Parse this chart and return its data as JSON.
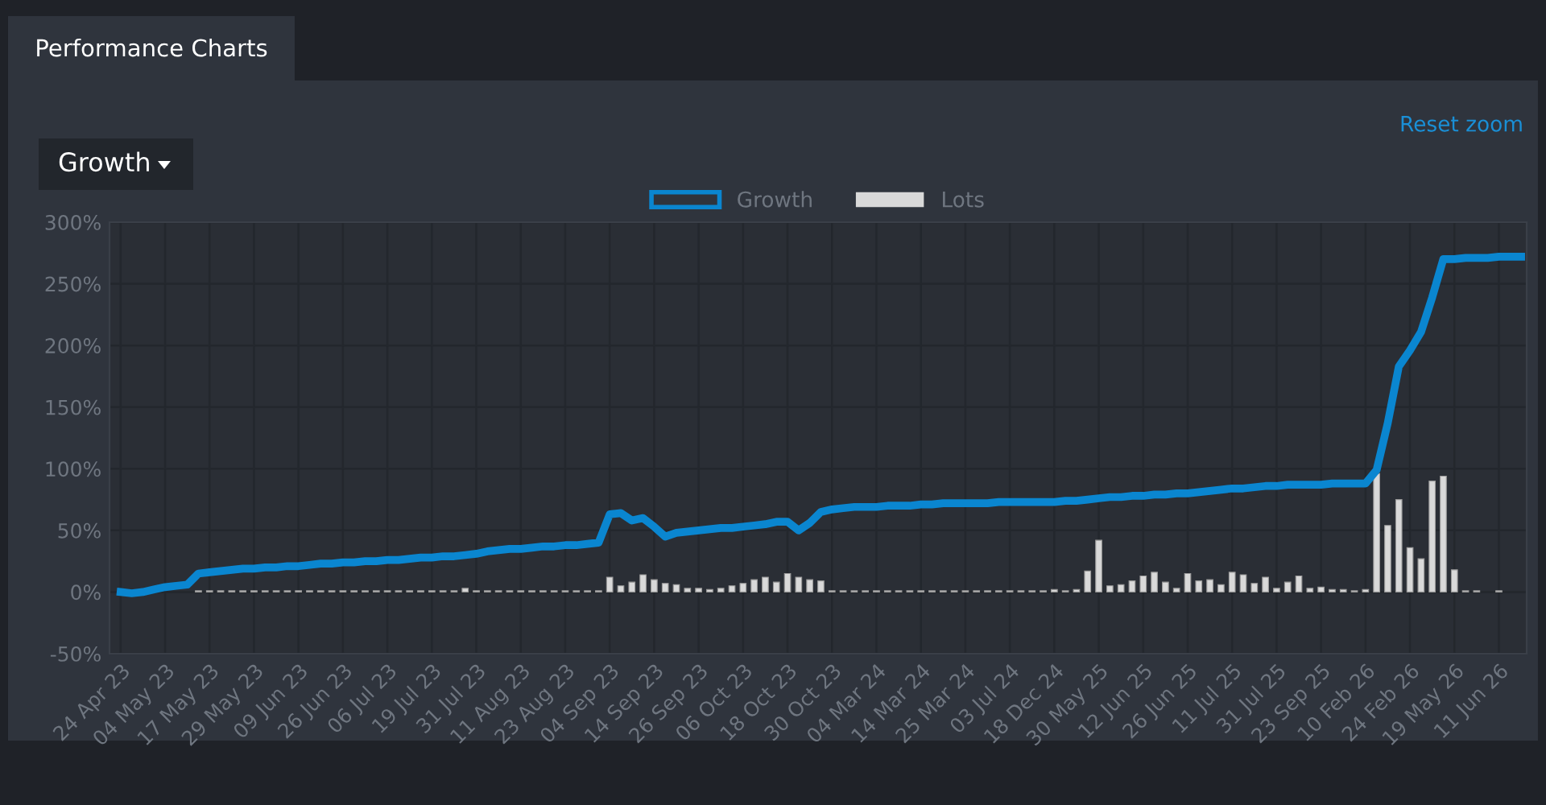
{
  "chart_data": {
    "type": "line",
    "title": "Performance Charts",
    "annotations": [
      "Growth",
      "Reset zoom"
    ],
    "categories": [
      "24 Apr 23",
      null,
      null,
      null,
      "04 May 23",
      null,
      null,
      null,
      "17 May 23",
      null,
      null,
      null,
      "29 May 23",
      null,
      null,
      null,
      "09 Jun 23",
      null,
      null,
      null,
      "26 Jun 23",
      null,
      null,
      null,
      "06 Jul 23",
      null,
      null,
      null,
      "19 Jul 23",
      null,
      null,
      null,
      "31 Jul 23",
      null,
      null,
      null,
      "11 Aug 23",
      null,
      null,
      null,
      "23 Aug 23",
      null,
      null,
      null,
      "04 Sep 23",
      null,
      null,
      null,
      "14 Sep 23",
      null,
      null,
      null,
      "26 Sep 23",
      null,
      null,
      null,
      "06 Oct 23",
      null,
      null,
      null,
      "18 Oct 23",
      null,
      null,
      null,
      "30 Oct 23",
      null,
      null,
      null,
      "04 Mar 24",
      null,
      null,
      null,
      "14 Mar 24",
      null,
      null,
      null,
      "25 Mar 24",
      null,
      null,
      null,
      "03 Jul 24",
      null,
      null,
      null,
      "18 Dec 24",
      null,
      null,
      null,
      "30 May 25",
      null,
      null,
      null,
      "12 Jun 25",
      null,
      null,
      null,
      "26 Jun 25",
      null,
      null,
      null,
      "11 Jul 25",
      null,
      null,
      null,
      "31 Jul 25",
      null,
      null,
      null,
      "23 Sep 25",
      null,
      null,
      null,
      "10 Feb 26",
      null,
      null,
      null,
      "24 Feb 26",
      null,
      null,
      null,
      "19 May 26",
      null,
      null,
      null,
      "11 Jun 26",
      null,
      null
    ],
    "series": [
      {
        "name": "Growth",
        "color": "#0a86d0",
        "values": [
          0,
          -1,
          0,
          2,
          4,
          5,
          6,
          15,
          16,
          17,
          18,
          19,
          19,
          20,
          20,
          21,
          21,
          22,
          23,
          23,
          24,
          24,
          25,
          25,
          26,
          26,
          27,
          28,
          28,
          29,
          29,
          30,
          31,
          33,
          34,
          35,
          35,
          36,
          37,
          37,
          38,
          38,
          39,
          40,
          63,
          64,
          58,
          60,
          53,
          45,
          48,
          49,
          50,
          51,
          52,
          52,
          53,
          54,
          55,
          57,
          57,
          50,
          56,
          65,
          67,
          68,
          69,
          69,
          69,
          70,
          70,
          70,
          71,
          71,
          72,
          72,
          72,
          72,
          72,
          73,
          73,
          73,
          73,
          73,
          73,
          74,
          74,
          75,
          76,
          77,
          77,
          78,
          78,
          79,
          79,
          80,
          80,
          81,
          82,
          83,
          84,
          84,
          85,
          86,
          86,
          87,
          87,
          87,
          87,
          88,
          88,
          88,
          88,
          99,
          137,
          183,
          196,
          211,
          239,
          270,
          270,
          271,
          271,
          271,
          272,
          272,
          272
        ]
      },
      {
        "name": "Lots",
        "type": "bar",
        "color": "#d9d9d9",
        "values": [
          null,
          null,
          null,
          null,
          null,
          null,
          null,
          1,
          1,
          1,
          1,
          1,
          1,
          1,
          1,
          1,
          1,
          1,
          1,
          1,
          1,
          1,
          1,
          1,
          1,
          1,
          1,
          1,
          1,
          1,
          1,
          3,
          1,
          1,
          1,
          1,
          1,
          1,
          1,
          1,
          1,
          1,
          1,
          1,
          12,
          5,
          8,
          14,
          10,
          7,
          6,
          3,
          3,
          2,
          3,
          5,
          7,
          10,
          12,
          8,
          15,
          12,
          10,
          9,
          1,
          1,
          1,
          1,
          1,
          1,
          1,
          1,
          1,
          1,
          1,
          1,
          1,
          1,
          1,
          1,
          1,
          1,
          1,
          1,
          2,
          1,
          2,
          17,
          42,
          5,
          6,
          9,
          13,
          16,
          8,
          3,
          15,
          9,
          10,
          6,
          16,
          14,
          7,
          12,
          3,
          8,
          13,
          3,
          4,
          2,
          2,
          1,
          2,
          96,
          54,
          75,
          36,
          27,
          90,
          94,
          18,
          1,
          1,
          null,
          1,
          null,
          null
        ]
      }
    ],
    "ylim": [
      -50,
      300
    ],
    "yticks": [
      {
        "value": -50,
        "label": "-50%"
      },
      {
        "value": 0,
        "label": "0%"
      },
      {
        "value": 50,
        "label": "50%"
      },
      {
        "value": 100,
        "label": "100%"
      },
      {
        "value": 150,
        "label": "150%"
      },
      {
        "value": 200,
        "label": "200%"
      },
      {
        "value": 250,
        "label": "250%"
      },
      {
        "value": 300,
        "label": "300%"
      }
    ],
    "grid": true,
    "legend": "top"
  }
}
